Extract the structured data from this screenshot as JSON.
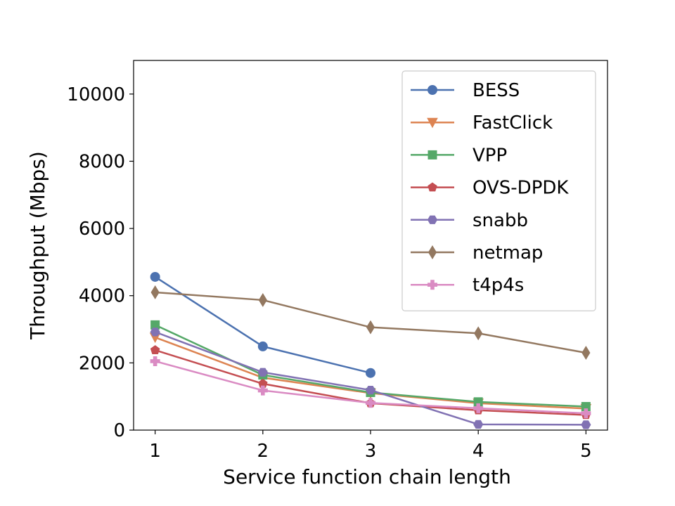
{
  "chart_data": {
    "type": "line",
    "xlabel": "Service function chain length",
    "ylabel": "Throughput (Mbps)",
    "x": [
      1,
      2,
      3,
      4,
      5
    ],
    "xlim": [
      0.8,
      5.2
    ],
    "ylim": [
      0,
      11000
    ],
    "xticks": [
      "1",
      "2",
      "3",
      "4",
      "5"
    ],
    "yticks": [
      "0",
      "2000",
      "4000",
      "6000",
      "8000",
      "10000"
    ],
    "grid": false,
    "legend_position": "top-right",
    "series": [
      {
        "name": "BESS",
        "color": "#4c72b0",
        "marker": "circle",
        "values": [
          4560,
          2490,
          1700,
          null,
          null
        ]
      },
      {
        "name": "FastClick",
        "color": "#dd8452",
        "marker": "triangle-down",
        "values": [
          2760,
          1560,
          1100,
          800,
          640
        ]
      },
      {
        "name": "VPP",
        "color": "#55a868",
        "marker": "square",
        "values": [
          3130,
          1640,
          1120,
          840,
          700
        ]
      },
      {
        "name": "OVS-DPDK",
        "color": "#c44e52",
        "marker": "pentagon",
        "values": [
          2380,
          1380,
          800,
          590,
          450
        ]
      },
      {
        "name": "snabb",
        "color": "#8172b3",
        "marker": "hexagon",
        "values": [
          2920,
          1720,
          1190,
          170,
          160
        ]
      },
      {
        "name": "netmap",
        "color": "#937860",
        "marker": "diamond",
        "values": [
          4100,
          3870,
          3060,
          2880,
          2300
        ]
      },
      {
        "name": "t4p4s",
        "color": "#da8bc3",
        "marker": "plus",
        "values": [
          2050,
          1180,
          810,
          650,
          500
        ]
      }
    ]
  }
}
